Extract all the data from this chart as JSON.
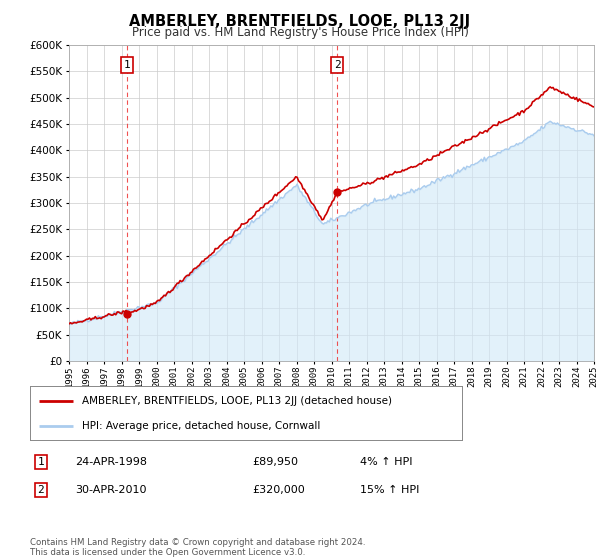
{
  "title": "AMBERLEY, BRENTFIELDS, LOOE, PL13 2JJ",
  "subtitle": "Price paid vs. HM Land Registry's House Price Index (HPI)",
  "xlim": [
    1995,
    2025
  ],
  "ylim": [
    0,
    600000
  ],
  "yticks": [
    0,
    50000,
    100000,
    150000,
    200000,
    250000,
    300000,
    350000,
    400000,
    450000,
    500000,
    550000,
    600000
  ],
  "sale1_x": 1998.31,
  "sale1_y": 89950,
  "sale2_x": 2010.33,
  "sale2_y": 320000,
  "property_line_color": "#cc0000",
  "hpi_line_color": "#aaccee",
  "hpi_fill_color": "#d0e8f8",
  "vline_color": "#ee3333",
  "background_color": "#ffffff",
  "grid_color": "#cccccc",
  "legend_label1": "AMBERLEY, BRENTFIELDS, LOOE, PL13 2JJ (detached house)",
  "legend_label2": "HPI: Average price, detached house, Cornwall",
  "annotation1": [
    "1",
    "24-APR-1998",
    "£89,950",
    "4% ↑ HPI"
  ],
  "annotation2": [
    "2",
    "30-APR-2010",
    "£320,000",
    "15% ↑ HPI"
  ],
  "footnote": "Contains HM Land Registry data © Crown copyright and database right 2024.\nThis data is licensed under the Open Government Licence v3.0."
}
